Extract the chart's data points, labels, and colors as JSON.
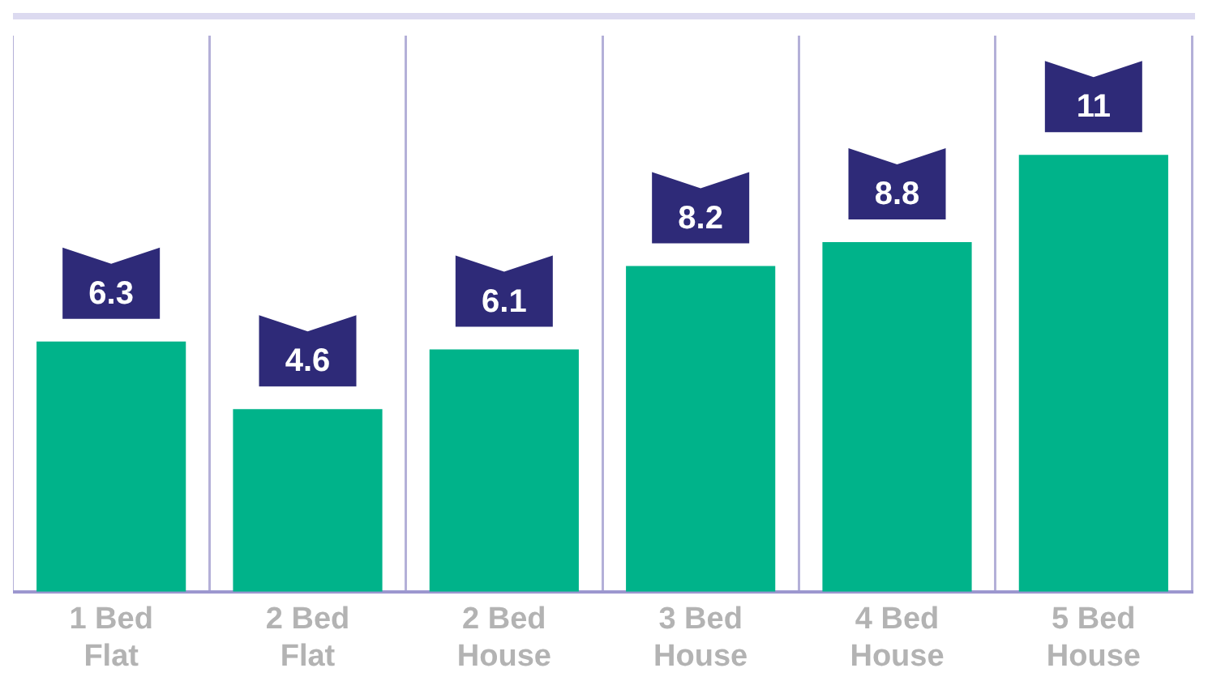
{
  "chart_data": {
    "type": "bar",
    "categories": [
      "1 Bed Flat",
      "2 Bed Flat",
      "2 Bed House",
      "3 Bed House",
      "4 Bed House",
      "5 Bed House"
    ],
    "values": [
      6.3,
      4.6,
      6.1,
      8.2,
      8.8,
      11
    ],
    "color": "#00b38a",
    "data_labels": true,
    "grid": "x"
  }
}
